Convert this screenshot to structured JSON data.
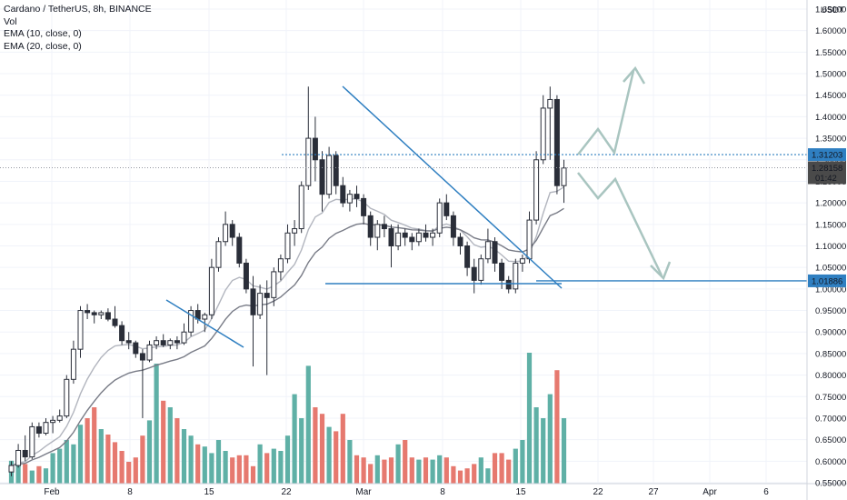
{
  "legend": {
    "line1": "Cardano / TetherUS, 8h, BINANCE",
    "line2": "Vol",
    "line3": "EMA (10, close, 0)",
    "line4": "EMA (20, close, 0)"
  },
  "colors": {
    "up": "#5fb0a6",
    "down": "#e6796f",
    "candle": "#2a2e39",
    "ema10": "#b2b5be",
    "ema20": "#787b86",
    "drawing": "#2f7fc1",
    "projection": "#a9c5c0",
    "price_badge": "#2f7fc1",
    "current_badge": "#4a4a4a"
  },
  "chart_data": {
    "type": "candlestick",
    "title": "Cardano / TetherUS, 8h, BINANCE",
    "ylabel": "USDT",
    "ylim": [
      0.55,
      1.67
    ],
    "y_ticks": [
      "1.65000",
      "1.60000",
      "1.55000",
      "1.50000",
      "1.45000",
      "1.40000",
      "1.35000",
      "1.30000",
      "1.25000",
      "1.20000",
      "1.15000",
      "1.10000",
      "1.05000",
      "1.00000",
      "0.95000",
      "0.90000",
      "0.85000",
      "0.80000",
      "0.75000",
      "0.70000",
      "0.65000",
      "0.60000",
      "0.55000"
    ],
    "x_ticks": [
      "Feb",
      "8",
      "15",
      "22",
      "Mar",
      "8",
      "15",
      "22",
      "27",
      "Apr",
      "6"
    ],
    "candles": [
      [
        0.575,
        0.6,
        0.565,
        0.59
      ],
      [
        0.59,
        0.64,
        0.585,
        0.625
      ],
      [
        0.625,
        0.66,
        0.6,
        0.61
      ],
      [
        0.61,
        0.69,
        0.605,
        0.68
      ],
      [
        0.68,
        0.69,
        0.655,
        0.665
      ],
      [
        0.665,
        0.7,
        0.66,
        0.69
      ],
      [
        0.69,
        0.705,
        0.665,
        0.695
      ],
      [
        0.695,
        0.72,
        0.69,
        0.705
      ],
      [
        0.705,
        0.8,
        0.7,
        0.79
      ],
      [
        0.79,
        0.88,
        0.78,
        0.86
      ],
      [
        0.86,
        0.96,
        0.84,
        0.95
      ],
      [
        0.95,
        0.965,
        0.93,
        0.945
      ],
      [
        0.945,
        0.95,
        0.92,
        0.94
      ],
      [
        0.94,
        0.95,
        0.93,
        0.945
      ],
      [
        0.945,
        0.955,
        0.925,
        0.93
      ],
      [
        0.93,
        0.96,
        0.91,
        0.915
      ],
      [
        0.915,
        0.925,
        0.87,
        0.88
      ],
      [
        0.88,
        0.9,
        0.86,
        0.875
      ],
      [
        0.875,
        0.88,
        0.84,
        0.85
      ],
      [
        0.85,
        0.86,
        0.7,
        0.835
      ],
      [
        0.835,
        0.88,
        0.83,
        0.87
      ],
      [
        0.87,
        0.89,
        0.86,
        0.88
      ],
      [
        0.88,
        0.895,
        0.865,
        0.87
      ],
      [
        0.87,
        0.885,
        0.86,
        0.88
      ],
      [
        0.88,
        0.89,
        0.86,
        0.875
      ],
      [
        0.875,
        0.92,
        0.87,
        0.9
      ],
      [
        0.9,
        0.96,
        0.89,
        0.95
      ],
      [
        0.95,
        0.965,
        0.92,
        0.93
      ],
      [
        0.93,
        0.945,
        0.9,
        0.94
      ],
      [
        0.94,
        1.07,
        0.93,
        1.05
      ],
      [
        1.05,
        1.12,
        1.04,
        1.11
      ],
      [
        1.11,
        1.18,
        1.1,
        1.15
      ],
      [
        1.15,
        1.16,
        1.1,
        1.12
      ],
      [
        1.12,
        1.13,
        1.05,
        1.06
      ],
      [
        1.06,
        1.07,
        0.99,
        1.0
      ],
      [
        1.0,
        1.03,
        0.82,
        0.94
      ],
      [
        0.94,
        1.01,
        0.93,
        0.99
      ],
      [
        0.99,
        1.02,
        0.8,
        0.98
      ],
      [
        0.98,
        1.05,
        0.96,
        1.04
      ],
      [
        1.04,
        1.08,
        1.02,
        1.07
      ],
      [
        1.07,
        1.15,
        1.06,
        1.13
      ],
      [
        1.13,
        1.16,
        1.1,
        1.14
      ],
      [
        1.14,
        1.25,
        1.13,
        1.24
      ],
      [
        1.24,
        1.47,
        1.23,
        1.35
      ],
      [
        1.35,
        1.4,
        1.25,
        1.3
      ],
      [
        1.3,
        1.32,
        1.18,
        1.22
      ],
      [
        1.22,
        1.33,
        1.21,
        1.31
      ],
      [
        1.31,
        1.32,
        1.22,
        1.24
      ],
      [
        1.24,
        1.26,
        1.19,
        1.2
      ],
      [
        1.2,
        1.23,
        1.18,
        1.22
      ],
      [
        1.22,
        1.24,
        1.19,
        1.21
      ],
      [
        1.21,
        1.22,
        1.15,
        1.17
      ],
      [
        1.17,
        1.18,
        1.1,
        1.12
      ],
      [
        1.12,
        1.16,
        1.09,
        1.15
      ],
      [
        1.15,
        1.17,
        1.12,
        1.14
      ],
      [
        1.14,
        1.15,
        1.05,
        1.1
      ],
      [
        1.1,
        1.15,
        1.09,
        1.13
      ],
      [
        1.13,
        1.14,
        1.1,
        1.12
      ],
      [
        1.12,
        1.13,
        1.09,
        1.11
      ],
      [
        1.11,
        1.14,
        1.1,
        1.13
      ],
      [
        1.13,
        1.15,
        1.11,
        1.12
      ],
      [
        1.12,
        1.14,
        1.1,
        1.13
      ],
      [
        1.13,
        1.21,
        1.12,
        1.2
      ],
      [
        1.2,
        1.22,
        1.16,
        1.17
      ],
      [
        1.17,
        1.18,
        1.1,
        1.12
      ],
      [
        1.12,
        1.13,
        1.08,
        1.1
      ],
      [
        1.1,
        1.11,
        1.03,
        1.05
      ],
      [
        1.05,
        1.07,
        0.99,
        1.02
      ],
      [
        1.02,
        1.08,
        1.01,
        1.07
      ],
      [
        1.07,
        1.14,
        1.06,
        1.11
      ],
      [
        1.11,
        1.12,
        1.04,
        1.06
      ],
      [
        1.06,
        1.07,
        1.0,
        1.02
      ],
      [
        1.02,
        1.03,
        0.99,
        1.0
      ],
      [
        1.0,
        1.07,
        0.99,
        1.06
      ],
      [
        1.06,
        1.08,
        1.04,
        1.07
      ],
      [
        1.07,
        1.18,
        1.06,
        1.16
      ],
      [
        1.16,
        1.32,
        1.15,
        1.3
      ],
      [
        1.3,
        1.45,
        1.29,
        1.42
      ],
      [
        1.42,
        1.47,
        1.3,
        1.44
      ],
      [
        1.44,
        1.45,
        1.22,
        1.24
      ],
      [
        1.24,
        1.3,
        1.2,
        1.281
      ]
    ],
    "volume": [
      0.021,
      0.02,
      0.018,
      0.012,
      0.016,
      0.014,
      0.028,
      0.032,
      0.04,
      0.036,
      0.054,
      0.06,
      0.07,
      0.05,
      0.045,
      0.038,
      0.03,
      0.02,
      0.024,
      0.044,
      0.058,
      0.11,
      0.076,
      0.07,
      0.06,
      0.05,
      0.044,
      0.036,
      0.034,
      0.028,
      0.04,
      0.03,
      0.024,
      0.026,
      0.026,
      0.016,
      0.036,
      0.028,
      0.032,
      0.03,
      0.044,
      0.082,
      0.06,
      0.108,
      0.07,
      0.064,
      0.052,
      0.048,
      0.064,
      0.04,
      0.026,
      0.024,
      0.018,
      0.026,
      0.022,
      0.024,
      0.036,
      0.04,
      0.024,
      0.022,
      0.024,
      0.022,
      0.026,
      0.024,
      0.016,
      0.012,
      0.014,
      0.018,
      0.024,
      0.014,
      0.028,
      0.028,
      0.022,
      0.032,
      0.04,
      0.12,
      0.07,
      0.06,
      0.082,
      0.104,
      0.06
    ],
    "price_lines": [
      {
        "price": 1.31203,
        "label": "1.31203",
        "style": "dotted"
      },
      {
        "price": 1.01886,
        "label": "1.01886",
        "style": "solid"
      }
    ],
    "current_price": {
      "label": "1.28158",
      "countdown": "01:42"
    }
  }
}
